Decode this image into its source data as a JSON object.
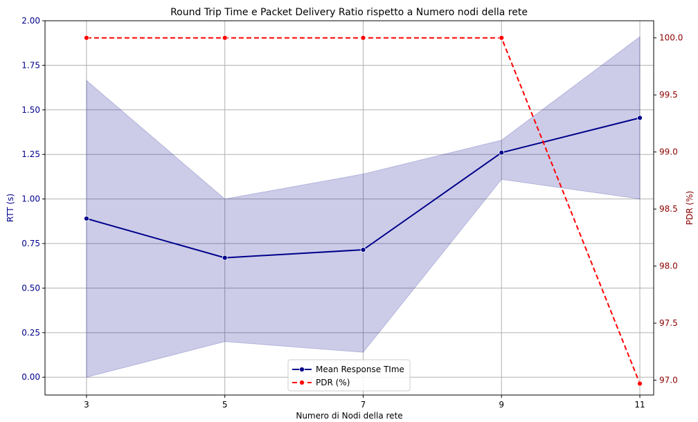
{
  "chart_data": {
    "type": "line",
    "title": "Round Trip Time e Packet Delivery Ratio rispetto a Numero nodi della rete",
    "xlabel": "Numero di Nodi della rete",
    "ylabel_left": "RTT (s)",
    "ylabel_right": "PDR (%)",
    "x": [
      3,
      5,
      7,
      9,
      11
    ],
    "x_ticks": [
      "3",
      "5",
      "7",
      "9",
      "11"
    ],
    "xlim": [
      2.4,
      11.2
    ],
    "ylim_left": [
      -0.1,
      2.0
    ],
    "ylim_right": [
      96.87,
      100.15
    ],
    "y_ticks_left": [
      0.0,
      0.25,
      0.5,
      0.75,
      1.0,
      1.25,
      1.5,
      1.75,
      2.0
    ],
    "y_tick_labels_left": [
      "0.00",
      "0.25",
      "0.50",
      "0.75",
      "1.00",
      "1.25",
      "1.50",
      "1.75",
      "2.00"
    ],
    "y_ticks_right": [
      97.0,
      97.5,
      98.0,
      98.5,
      99.0,
      99.5,
      100.0
    ],
    "y_tick_labels_right": [
      "97.0",
      "97.5",
      "98.0",
      "98.5",
      "99.0",
      "99.5",
      "100.0"
    ],
    "grid": true,
    "legend_position": "bottom-center",
    "series": [
      {
        "name": "Mean Response TIme",
        "axis": "left",
        "color": "#00008b",
        "linestyle": "solid",
        "marker": "circle",
        "values": [
          0.89,
          0.67,
          0.715,
          1.26,
          1.455
        ],
        "band_lower": [
          0.0,
          0.2,
          0.14,
          1.11,
          1.0
        ],
        "band_upper": [
          1.665,
          1.0,
          1.14,
          1.33,
          1.91
        ],
        "band_color": "#00008b"
      },
      {
        "name": "PDR (%)",
        "axis": "right",
        "color": "#ff0000",
        "linestyle": "dashed",
        "marker": "circle",
        "values": [
          100.0,
          100.0,
          100.0,
          100.0,
          96.97
        ]
      }
    ],
    "colors": {
      "left_axis": "#00008b",
      "right_axis": "#8b0000",
      "grid": "#b0b0b0"
    }
  }
}
